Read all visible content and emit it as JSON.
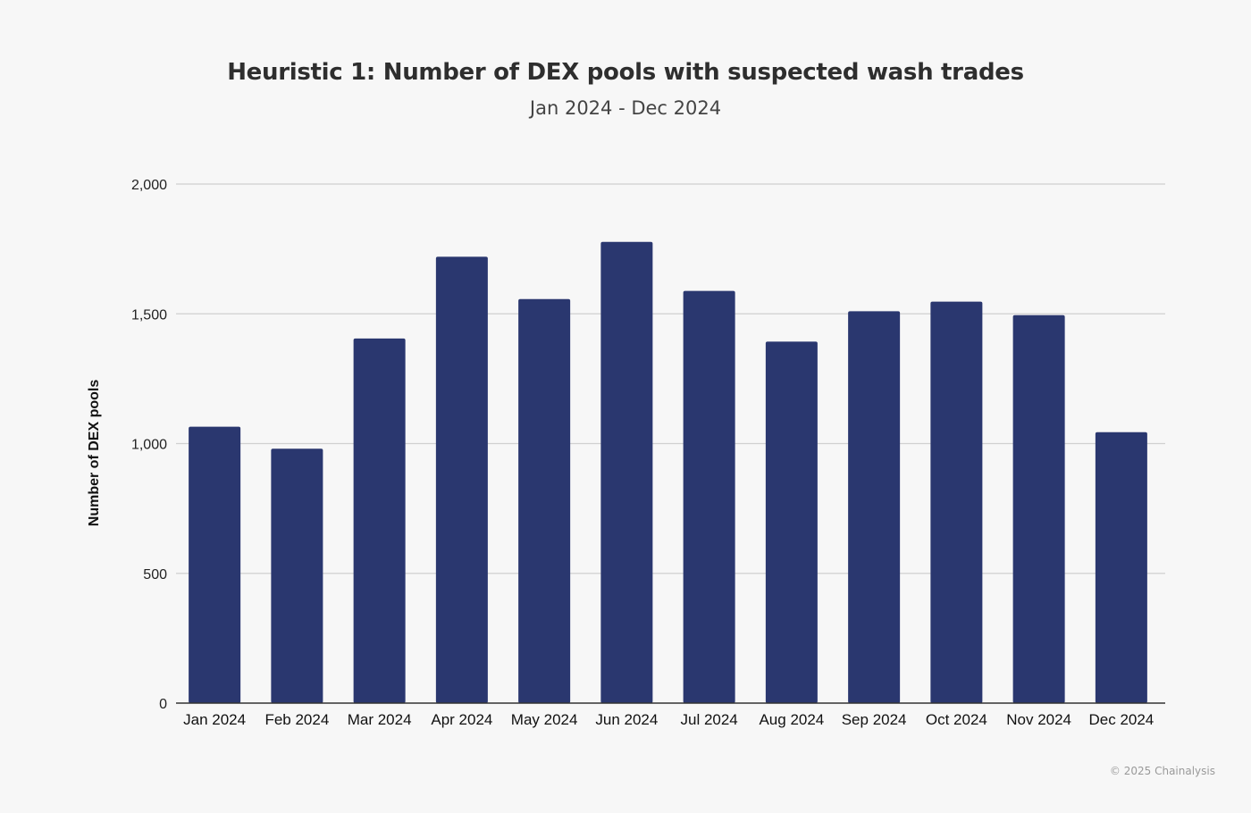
{
  "chart_data": {
    "type": "bar",
    "title": "Heuristic 1: Number of DEX pools with suspected wash trades",
    "subtitle": "Jan 2024 - Dec 2024",
    "xlabel": "",
    "ylabel": "Number of DEX pools",
    "categories": [
      "Jan 2024",
      "Feb 2024",
      "Mar 2024",
      "Apr 2024",
      "May 2024",
      "Jun 2024",
      "Jul 2024",
      "Aug 2024",
      "Sep 2024",
      "Oct 2024",
      "Nov 2024",
      "Dec 2024"
    ],
    "values": [
      1065,
      980,
      1405,
      1720,
      1557,
      1777,
      1588,
      1393,
      1510,
      1547,
      1495,
      1044
    ],
    "ylim": [
      0,
      2000
    ],
    "yticks": [
      0,
      500,
      1000,
      1500,
      2000
    ],
    "ytick_labels": [
      "0",
      "500",
      "1,000",
      "1,500",
      "2,000"
    ],
    "grid": true,
    "legend": "none",
    "bar_color": "#2a376f"
  },
  "footer": {
    "copyright": "© 2025 Chainalysis"
  }
}
